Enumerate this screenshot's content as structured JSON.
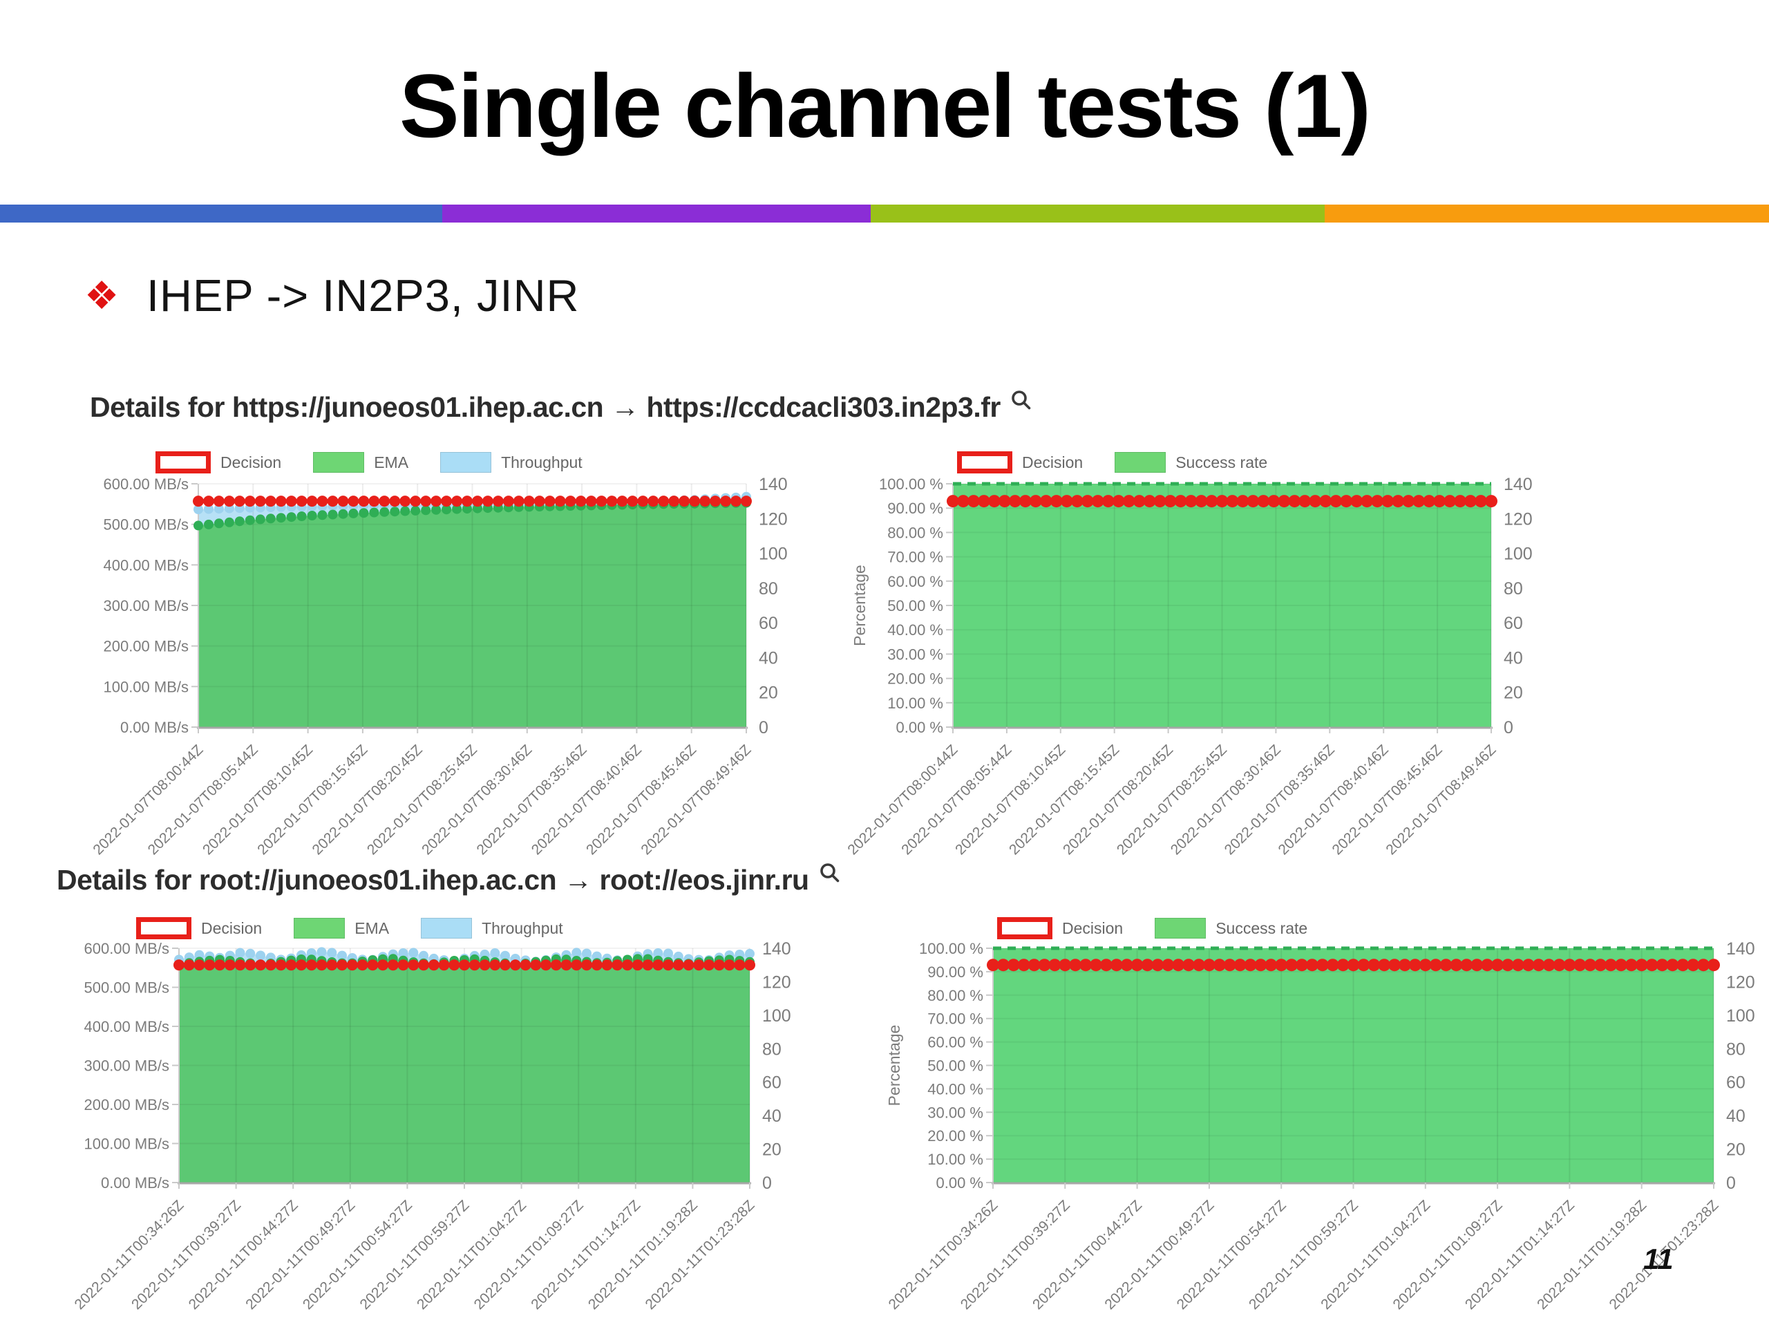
{
  "slide": {
    "title": "Single channel tests (1)",
    "page_number": "11",
    "bullet": {
      "marker": "❖",
      "text": "IHEP -> IN2P3, JINR"
    },
    "accent_bar_colors": [
      "#3e68c6",
      "#8b2dd6",
      "#99c119",
      "#f89c0e"
    ]
  },
  "sections": [
    {
      "heading": "Details for https://junoeos01.ihep.ac.cn → https://ccdcacli303.in2p3.fr",
      "icon": "magnifier-icon"
    },
    {
      "heading": "Details for root://junoeos01.ihep.ac.cn → root://eos.jinr.ru",
      "icon": "magnifier-icon"
    }
  ],
  "chart_data": [
    {
      "type": "area",
      "section": 0,
      "description": "Throughput junoeos01.ihep.ac.cn to ccdcacli303.in2p3.fr",
      "left_axis": {
        "min": 0,
        "max": 600,
        "unit": "MB/s",
        "ticks": [
          "600.00 MB/s",
          "500.00 MB/s",
          "400.00 MB/s",
          "300.00 MB/s",
          "200.00 MB/s",
          "100.00 MB/s",
          "0.00 MB/s"
        ]
      },
      "right_axis": {
        "min": 0,
        "max": 140,
        "ticks": [
          "140",
          "120",
          "100",
          "80",
          "60",
          "40",
          "20",
          "0"
        ]
      },
      "x_labels": [
        "2022-01-07T08:00:44Z",
        "2022-01-07T08:05:44Z",
        "2022-01-07T08:10:45Z",
        "2022-01-07T08:15:45Z",
        "2022-01-07T08:20:45Z",
        "2022-01-07T08:25:45Z",
        "2022-01-07T08:30:46Z",
        "2022-01-07T08:35:46Z",
        "2022-01-07T08:40:46Z",
        "2022-01-07T08:45:46Z",
        "2022-01-07T08:49:46Z"
      ],
      "legend": [
        {
          "label": "Decision",
          "swatch": "outline",
          "color": "#e8201a"
        },
        {
          "label": "EMA",
          "swatch": "solid",
          "color": "#6ed674"
        },
        {
          "label": "Throughput",
          "swatch": "solid",
          "color": "#aaddf6"
        }
      ],
      "series": [
        {
          "name": "Throughput",
          "style": "area+dots",
          "axis": "left",
          "area_color": "#b7e1f6",
          "dot_color": "#9dd2ef",
          "r": 7,
          "anchors": [
            537,
            541,
            544,
            547,
            549,
            551,
            553,
            555,
            557,
            560,
            568
          ]
        },
        {
          "name": "EMA",
          "style": "area+dots",
          "axis": "left",
          "area_color": "#5cc873",
          "dot_color": "#2fae55",
          "r": 7,
          "anchors": [
            497,
            511,
            521,
            528,
            534,
            539,
            543,
            546,
            549,
            551,
            553
          ]
        },
        {
          "name": "Decision",
          "style": "dots",
          "axis": "right",
          "dot_color": "#e8201a",
          "r": 8,
          "anchors": [
            130
          ]
        }
      ]
    },
    {
      "type": "area",
      "section": 0,
      "description": "Success rate junoeos01.ihep.ac.cn to ccdcacli303.in2p3.fr",
      "y_title": "Percentage",
      "left_axis": {
        "min": 0,
        "max": 100,
        "unit": "%",
        "ticks": [
          "100.00 %",
          "90.00 %",
          "80.00 %",
          "70.00 %",
          "60.00 %",
          "50.00 %",
          "40.00 %",
          "30.00 %",
          "20.00 %",
          "10.00 %",
          "0.00 %"
        ]
      },
      "right_axis": {
        "min": 0,
        "max": 140,
        "ticks": [
          "140",
          "120",
          "100",
          "80",
          "60",
          "40",
          "20",
          "0"
        ]
      },
      "x_labels": [
        "2022-01-07T08:00:44Z",
        "2022-01-07T08:05:44Z",
        "2022-01-07T08:10:45Z",
        "2022-01-07T08:15:45Z",
        "2022-01-07T08:20:45Z",
        "2022-01-07T08:25:45Z",
        "2022-01-07T08:30:46Z",
        "2022-01-07T08:35:46Z",
        "2022-01-07T08:40:46Z",
        "2022-01-07T08:45:46Z",
        "2022-01-07T08:49:46Z"
      ],
      "legend": [
        {
          "label": "Decision",
          "swatch": "outline",
          "color": "#e8201a"
        },
        {
          "label": "Success rate",
          "swatch": "solid",
          "color": "#6ed674"
        }
      ],
      "series": [
        {
          "name": "Success rate",
          "style": "area+dash",
          "axis": "left",
          "area_color": "#63d67e",
          "dash_color": "#2fae55",
          "anchors": [
            100
          ]
        },
        {
          "name": "Decision",
          "style": "dots",
          "axis": "right",
          "dot_color": "#e8201a",
          "r": 9,
          "anchors": [
            130
          ]
        }
      ]
    },
    {
      "type": "area",
      "section": 1,
      "description": "Throughput junoeos01.ihep.ac.cn to eos.jinr.ru",
      "left_axis": {
        "min": 0,
        "max": 600,
        "unit": "MB/s",
        "ticks": [
          "600.00 MB/s",
          "500.00 MB/s",
          "400.00 MB/s",
          "300.00 MB/s",
          "200.00 MB/s",
          "100.00 MB/s",
          "0.00 MB/s"
        ]
      },
      "right_axis": {
        "min": 0,
        "max": 140,
        "ticks": [
          "140",
          "120",
          "100",
          "80",
          "60",
          "40",
          "20",
          "0"
        ]
      },
      "x_labels": [
        "2022-01-11T00:34:26Z",
        "2022-01-11T00:39:27Z",
        "2022-01-11T00:44:27Z",
        "2022-01-11T00:49:27Z",
        "2022-01-11T00:54:27Z",
        "2022-01-11T00:59:27Z",
        "2022-01-11T01:04:27Z",
        "2022-01-11T01:09:27Z",
        "2022-01-11T01:14:27Z",
        "2022-01-11T01:19:28Z",
        "2022-01-11T01:23:28Z"
      ],
      "legend": [
        {
          "label": "Decision",
          "swatch": "outline",
          "color": "#e8201a"
        },
        {
          "label": "EMA",
          "swatch": "solid",
          "color": "#6ed674"
        },
        {
          "label": "Throughput",
          "swatch": "solid",
          "color": "#aaddf6"
        }
      ],
      "series": [
        {
          "name": "Throughput",
          "style": "area+dots",
          "axis": "left",
          "area_color": "#b7e1f6",
          "dot_color": "#9dd2ef",
          "r": 7,
          "anchors": [
            571,
            583,
            575,
            590,
            580,
            569,
            586,
            592,
            577,
            568,
            584,
            590,
            574,
            566,
            581,
            588,
            572,
            565,
            579,
            591,
            576,
            567,
            585,
            589,
            573,
            569,
            582,
            586
          ]
        },
        {
          "name": "EMA",
          "style": "area+dots",
          "axis": "left",
          "area_color": "#5cc873",
          "dot_color": "#2fae55",
          "r": 7,
          "anchors": [
            559,
            566,
            571,
            564,
            558,
            567,
            573,
            566,
            560,
            569,
            574,
            565,
            559,
            568,
            572,
            564,
            558,
            566,
            573,
            567,
            561,
            570,
            574,
            566,
            560,
            567,
            571,
            565
          ]
        },
        {
          "name": "Decision",
          "style": "dots",
          "axis": "right",
          "dot_color": "#e8201a",
          "r": 8,
          "anchors": [
            130
          ]
        }
      ]
    },
    {
      "type": "area",
      "section": 1,
      "description": "Success rate junoeos01.ihep.ac.cn to eos.jinr.ru",
      "y_title": "Percentage",
      "left_axis": {
        "min": 0,
        "max": 100,
        "unit": "%",
        "ticks": [
          "100.00 %",
          "90.00 %",
          "80.00 %",
          "70.00 %",
          "60.00 %",
          "50.00 %",
          "40.00 %",
          "30.00 %",
          "20.00 %",
          "10.00 %",
          "0.00 %"
        ]
      },
      "right_axis": {
        "min": 0,
        "max": 140,
        "ticks": [
          "140",
          "120",
          "100",
          "80",
          "60",
          "40",
          "20",
          "0"
        ]
      },
      "x_labels": [
        "2022-01-11T00:34:26Z",
        "2022-01-11T00:39:27Z",
        "2022-01-11T00:44:27Z",
        "2022-01-11T00:49:27Z",
        "2022-01-11T00:54:27Z",
        "2022-01-11T00:59:27Z",
        "2022-01-11T01:04:27Z",
        "2022-01-11T01:09:27Z",
        "2022-01-11T01:14:27Z",
        "2022-01-11T01:19:28Z",
        "2022-01-11T01:23:28Z"
      ],
      "legend": [
        {
          "label": "Decision",
          "swatch": "outline",
          "color": "#e8201a"
        },
        {
          "label": "Success rate",
          "swatch": "solid",
          "color": "#6ed674"
        }
      ],
      "series": [
        {
          "name": "Success rate",
          "style": "area+dash",
          "axis": "left",
          "area_color": "#63d67e",
          "dash_color": "#2fae55",
          "anchors": [
            100
          ]
        },
        {
          "name": "Decision",
          "style": "dots",
          "axis": "right",
          "dot_color": "#e8201a",
          "r": 9,
          "anchors": [
            130
          ]
        }
      ]
    }
  ]
}
